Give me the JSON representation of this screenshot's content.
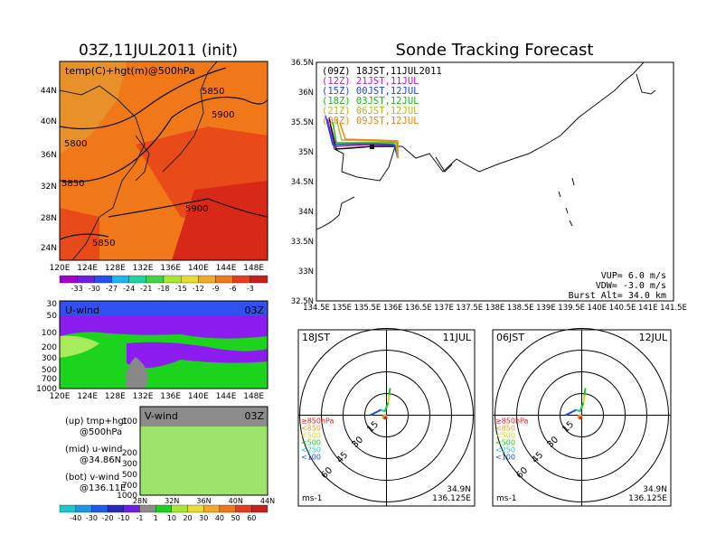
{
  "colors": {
    "cold": "#e8902a",
    "mid": "#f07818",
    "warm": "#e84a1a",
    "hot": "#d82818",
    "u_bg": "#1cd41c",
    "u_light": "#a8ec5c",
    "u_purple": "#8c1cf0",
    "u_gray": "#888888",
    "v_light": "#9ce46c",
    "v_gray": "#8c8c8c",
    "track_09z": "#000000",
    "track_12z": "#b418c8",
    "track_15z": "#1848e8",
    "track_18z": "#18b818",
    "track_21z": "#b8b818",
    "track_00z": "#e88418"
  },
  "temp_panel": {
    "title": "03Z,11JUL2011 (init)",
    "label": "temp(C)+hgt(m)@500hPa",
    "lat_ticks": [
      "44N",
      "40N",
      "36N",
      "32N",
      "28N",
      "24N"
    ],
    "lon_ticks": [
      "120E",
      "124E",
      "128E",
      "132E",
      "136E",
      "140E",
      "144E",
      "148E"
    ],
    "contours": [
      "5800",
      "5850",
      "5900",
      "5850",
      "5900",
      "5850"
    ],
    "colorbar": {
      "labels": [
        "-33",
        "-30",
        "-27",
        "-24",
        "-21",
        "-18",
        "-15",
        "-12",
        "-9",
        "-6",
        "-3"
      ],
      "colors": [
        "#a000c8",
        "#6e1ee6",
        "#2850f0",
        "#1eb4f0",
        "#1ed4a0",
        "#46d246",
        "#a8e632",
        "#e6dc32",
        "#f0aa28",
        "#f07818",
        "#e63c1e",
        "#c81e1e"
      ]
    }
  },
  "u_panel": {
    "label": "U-wind",
    "time": "03Z",
    "p_ticks": [
      "30",
      "50",
      "100",
      "200",
      "300",
      "500",
      "700",
      "1000"
    ],
    "lon_ticks": [
      "120E",
      "124E",
      "128E",
      "132E",
      "136E",
      "140E",
      "144E",
      "148E"
    ]
  },
  "v_panel": {
    "label": "V-wind",
    "time": "03Z",
    "p_ticks": [
      "100",
      "200",
      "300",
      "500",
      "700",
      "1000"
    ],
    "lat_ticks": [
      "28N",
      "32N",
      "36N",
      "40N",
      "44N"
    ]
  },
  "wind_colorbar": {
    "labels": [
      "-40",
      "-30",
      "-20",
      "-10",
      "-1",
      "1",
      "10",
      "20",
      "30",
      "40",
      "50",
      "60"
    ],
    "colors": [
      "#1ec8c8",
      "#1e96e6",
      "#1e5af0",
      "#2828c8",
      "#6e1ee6",
      "#8c8c8c",
      "#1ed21e",
      "#a8e632",
      "#e6dc32",
      "#f0aa28",
      "#f07818",
      "#e63c1e",
      "#c81e1e"
    ]
  },
  "legend_text": {
    "up": "(up) tmp+hgt",
    "up2": "@500hPa",
    "mid": "(mid) u-wind",
    "mid2": "@34.86N",
    "bot": "(bot) v-wind",
    "bot2": "@136.11E"
  },
  "forecast": {
    "title": "Sonde Tracking Forecast",
    "lat_ticks": [
      "36.5N",
      "36N",
      "35.5N",
      "35N",
      "34.5N",
      "34N",
      "33.5N",
      "33N",
      "32.5N"
    ],
    "lon_ticks": [
      "134.5E",
      "135E",
      "135.5E",
      "136E",
      "136.5E",
      "137E",
      "137.5E",
      "138E",
      "138.5E",
      "139E",
      "139.5E",
      "140E",
      "140.5E",
      "141E",
      "141.5E"
    ],
    "launches": [
      {
        "label": "(09Z)  18JST,11JUL2011",
        "color": "#000000"
      },
      {
        "label": "(12Z)  21JST,11JUL",
        "color": "#b418c8"
      },
      {
        "label": "(15Z)  00JST,12JUL",
        "color": "#1848e8"
      },
      {
        "label": "(18Z)  03JST,12JUL",
        "color": "#18b818"
      },
      {
        "label": "(21Z)  06JST,12JUL",
        "color": "#b8b818"
      },
      {
        "label": "(00Z)  09JST,12JUL",
        "color": "#e88418"
      }
    ],
    "params": [
      "VUP=  6.0  m/s",
      "VDW= -3.0  m/s",
      "Burst Alt=  34.0  km"
    ]
  },
  "hodo_left": {
    "time": "18JST",
    "date": "11JUL",
    "unit": "ms-1",
    "lat": "34.9N",
    "lon": "136.125E",
    "ring_labels": [
      "15",
      "30",
      "45",
      "60"
    ],
    "levels": [
      {
        "label": "≥850hPa",
        "color": "#e81818"
      },
      {
        "label": "<850",
        "color": "#e8a018"
      },
      {
        "label": "<500",
        "color": "#d8d818"
      },
      {
        "label": "<500",
        "color": "#18c818"
      },
      {
        "label": "<250",
        "color": "#18c8c8"
      },
      {
        "label": "<100",
        "color": "#1848e8"
      }
    ]
  },
  "hodo_right": {
    "time": "06JST",
    "date": "12JUL",
    "unit": "ms-1",
    "lat": "34.9N",
    "lon": "136.125E",
    "ring_labels": [
      "15",
      "30",
      "45",
      "60"
    ],
    "levels": [
      {
        "label": "≥850hPa",
        "color": "#e81818"
      },
      {
        "label": "<850",
        "color": "#e8a018"
      },
      {
        "label": "<500",
        "color": "#d8d818"
      },
      {
        "label": "<500",
        "color": "#18c818"
      },
      {
        "label": "<250",
        "color": "#18c8c8"
      },
      {
        "label": "<100",
        "color": "#1848e8"
      }
    ]
  }
}
